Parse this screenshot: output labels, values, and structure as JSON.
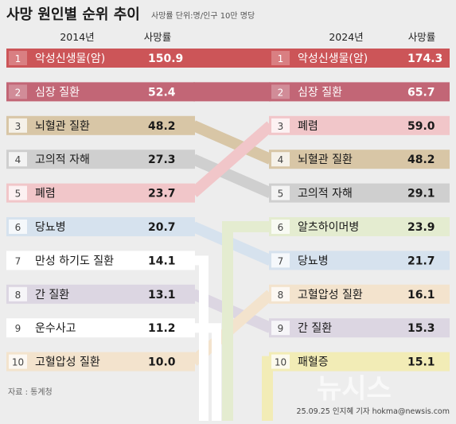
{
  "chart_data": {
    "type": "table",
    "title": "사망 원인별 순위 추이",
    "unit_note": "사망률 단위:명/인구 10만 명당",
    "left": {
      "year": "2014년",
      "value_header": "사망률",
      "rows": [
        {
          "rank": "1",
          "cause": "악성신생물(암)",
          "value": "150.9",
          "color": "#cc5558"
        },
        {
          "rank": "2",
          "cause": "심장 질환",
          "value": "52.4",
          "color": "#c26676"
        },
        {
          "rank": "3",
          "cause": "뇌혈관 질환",
          "value": "48.2",
          "color": "#d8c6a6"
        },
        {
          "rank": "4",
          "cause": "고의적 자해",
          "value": "27.3",
          "color": "#cfcfcf"
        },
        {
          "rank": "5",
          "cause": "폐렴",
          "value": "23.7",
          "color": "#f1c6c9"
        },
        {
          "rank": "6",
          "cause": "당뇨병",
          "value": "20.7",
          "color": "#d6e2ee"
        },
        {
          "rank": "7",
          "cause": "만성 하기도 질환",
          "value": "14.1",
          "color": "#ffffff"
        },
        {
          "rank": "8",
          "cause": "간 질환",
          "value": "13.1",
          "color": "#dcd6e2"
        },
        {
          "rank": "9",
          "cause": "운수사고",
          "value": "11.2",
          "color": "#ffffff"
        },
        {
          "rank": "10",
          "cause": "고혈압성 질환",
          "value": "10.0",
          "color": "#f3e3cd"
        }
      ]
    },
    "right": {
      "year": "2024년",
      "value_header": "사망률",
      "rows": [
        {
          "rank": "1",
          "cause": "악성신생물(암)",
          "value": "174.3",
          "color": "#cc5558"
        },
        {
          "rank": "2",
          "cause": "심장 질환",
          "value": "65.7",
          "color": "#c26676"
        },
        {
          "rank": "3",
          "cause": "폐렴",
          "value": "59.0",
          "color": "#f1c6c9"
        },
        {
          "rank": "4",
          "cause": "뇌혈관 질환",
          "value": "48.2",
          "color": "#d8c6a6"
        },
        {
          "rank": "5",
          "cause": "고의적 자해",
          "value": "29.1",
          "color": "#cfcfcf"
        },
        {
          "rank": "6",
          "cause": "알츠하이머병",
          "value": "23.9",
          "color": "#e4ecd0"
        },
        {
          "rank": "7",
          "cause": "당뇨병",
          "value": "21.7",
          "color": "#d6e2ee"
        },
        {
          "rank": "8",
          "cause": "고혈압성 질환",
          "value": "16.1",
          "color": "#f3e3cd"
        },
        {
          "rank": "9",
          "cause": "간 질환",
          "value": "15.3",
          "color": "#dcd6e2"
        },
        {
          "rank": "10",
          "cause": "패혈증",
          "value": "15.1",
          "color": "#f2ecb6"
        }
      ]
    },
    "links": [
      {
        "from": 1,
        "to": 1
      },
      {
        "from": 2,
        "to": 2
      },
      {
        "from": 3,
        "to": 4
      },
      {
        "from": 4,
        "to": 5
      },
      {
        "from": 5,
        "to": 3
      },
      {
        "from": 6,
        "to": 7
      },
      {
        "from": 8,
        "to": 9
      },
      {
        "from": 10,
        "to": 8
      }
    ],
    "extra_lines": [
      {
        "label_of": "알츠하이머병",
        "color": "#e4ecd0"
      },
      {
        "label_of": "패혈증",
        "color": "#f2ecb6"
      }
    ]
  },
  "footer": {
    "source": "자료 : 통계청",
    "credit": "25.09.25 인지혜 기자 hokma@newsis.com",
    "watermark": "뉴시스"
  }
}
